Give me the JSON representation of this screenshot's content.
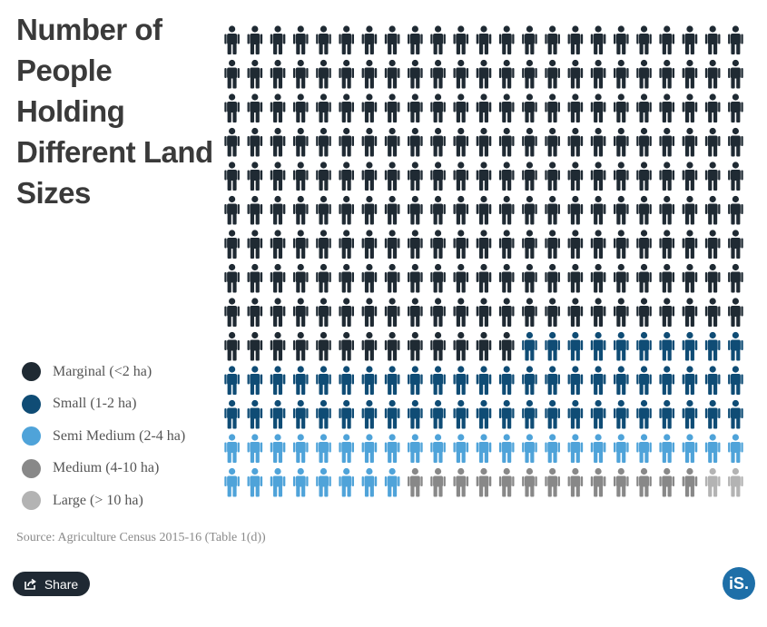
{
  "chart_data": {
    "type": "pictogram",
    "title": "Number of People Holding Different Land Sizes",
    "unit_icon": "person-icon",
    "grid": {
      "rows": 14,
      "cols": 23
    },
    "categories": [
      {
        "name": "Marginal (<2 ha)",
        "count": 220,
        "color": "#1f2a33"
      },
      {
        "name": "Small (1-2 ha)",
        "count": 56,
        "color": "#0f4c75"
      },
      {
        "name": "Semi Medium (2-4 ha)",
        "count": 31,
        "color": "#4fa3d9"
      },
      {
        "name": "Medium (4-10 ha)",
        "count": 13,
        "color": "#888888"
      },
      {
        "name": "Large (> 10 ha)",
        "count": 2,
        "color": "#b3b3b3"
      }
    ],
    "total_icons": 322,
    "legend_position": "left-bottom"
  },
  "source": "Source: Agriculture Census 2015-16 (Table 1(d))",
  "share_label": "Share",
  "brand_logo": "iS."
}
